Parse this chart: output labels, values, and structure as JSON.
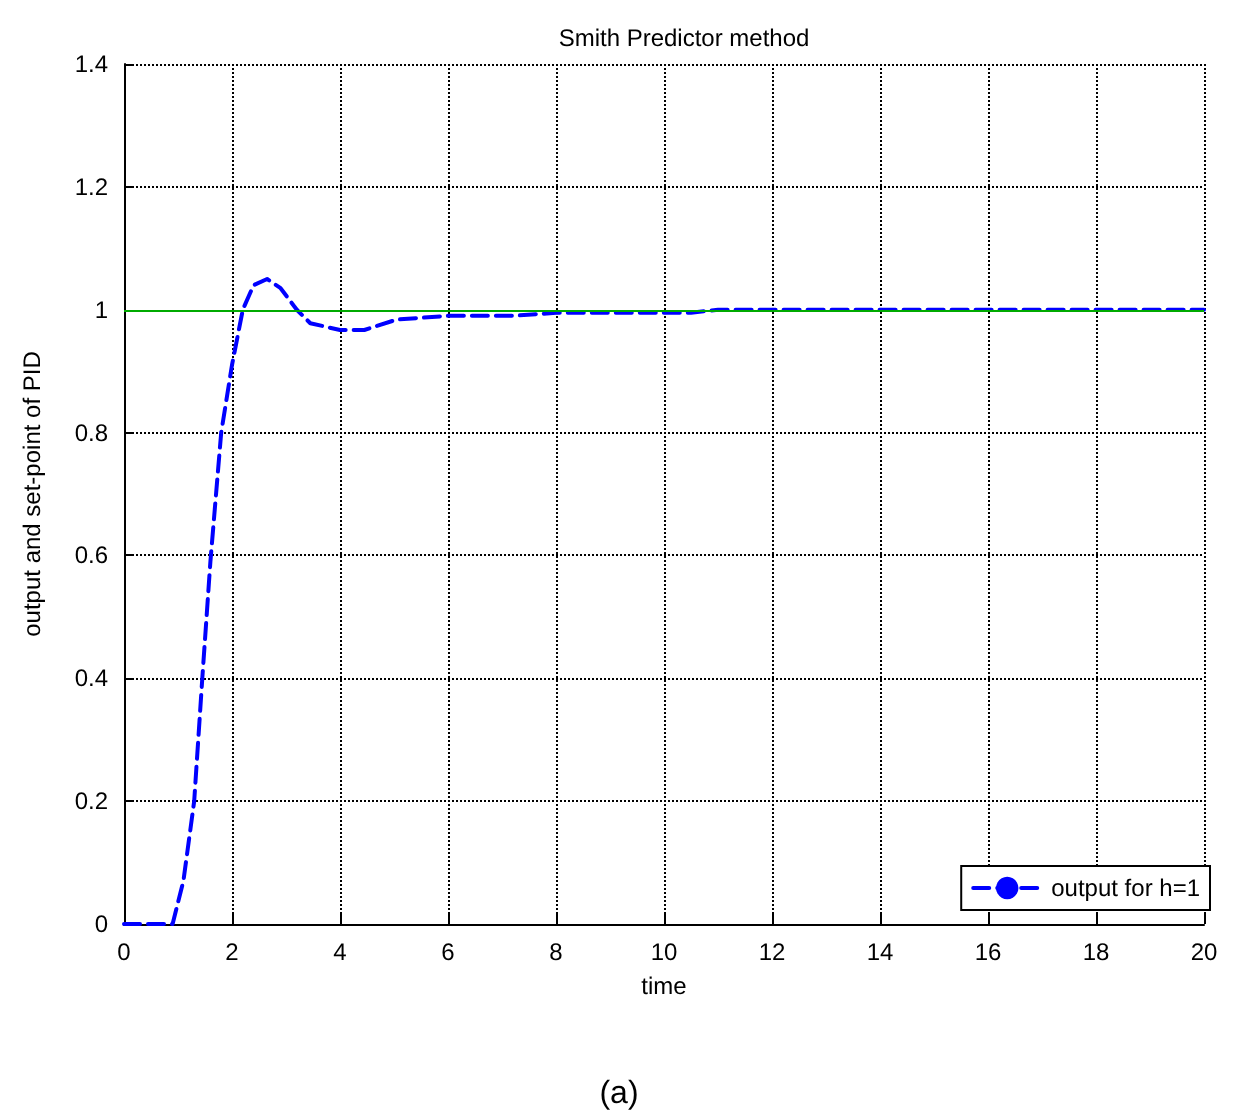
{
  "chart_data": {
    "type": "line",
    "title": "Smith Predictor method",
    "xlabel": "time",
    "ylabel": "output and set-point of PID",
    "annotations": [
      "(a)"
    ],
    "x": [
      0,
      0.9,
      1.1,
      1.3,
      1.45,
      1.6,
      1.8,
      2,
      2.2,
      2.4,
      2.65,
      2.9,
      3.2,
      3.45,
      4,
      4.45,
      5.05,
      6,
      7.2,
      8,
      9,
      10,
      10.5,
      11,
      12,
      14,
      16,
      18,
      20
    ],
    "series": [
      {
        "name": "output for h=1",
        "color": "#0000ff",
        "values": [
          0,
          0,
          0.07,
          0.2,
          0.4,
          0.59,
          0.8,
          0.91,
          1.0,
          1.04,
          1.05,
          1.035,
          1.0,
          0.978,
          0.967,
          0.967,
          0.984,
          0.99,
          0.99,
          0.995,
          0.995,
          0.995,
          0.995,
          1.0,
          1.0,
          1.0,
          1.0,
          1.0,
          1.0
        ]
      }
    ],
    "ref_lines": [
      {
        "axis": "y",
        "value": 1,
        "color": "#00aa00"
      }
    ],
    "xlim": [
      0,
      20
    ],
    "xticks": [
      0,
      2,
      4,
      6,
      8,
      10,
      12,
      14,
      16,
      18,
      20
    ],
    "ylim": [
      0,
      1.4
    ],
    "yticks": [
      0,
      0.2,
      0.4,
      0.6,
      0.8,
      1,
      1.2,
      1.4
    ],
    "grid": true,
    "legend": "bottom right",
    "line_style": "dashed",
    "marker": "none"
  }
}
